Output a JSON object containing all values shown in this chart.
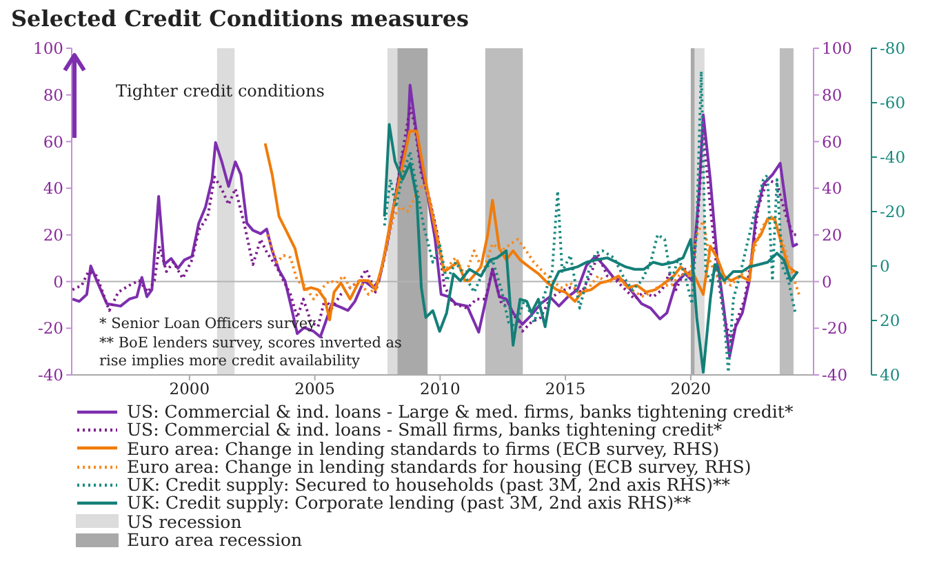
{
  "chart_data": {
    "type": "line",
    "title": "Selected Credit Conditions measures",
    "xlim": [
      1995.3,
      2024.9
    ],
    "xticks": [
      2000,
      2005,
      2010,
      2015,
      2020
    ],
    "ylim": [
      -40,
      100
    ],
    "yticks": [
      -40,
      -20,
      0,
      20,
      40,
      60,
      80,
      100
    ],
    "y2lim": [
      -40,
      100
    ],
    "y2ticks": [
      -40,
      -20,
      0,
      20,
      40,
      60,
      80,
      100
    ],
    "y3lim": [
      40,
      -80
    ],
    "y3ticks": [
      -80,
      -60,
      -40,
      -20,
      0,
      20,
      40
    ],
    "legend": "bottom",
    "annotations": [
      "Tighter credit conditions",
      "* Senior Loan Officers survey",
      "** BoE lenders survey, scores inverted as rise implies more credit availability"
    ],
    "ref_lines": [
      {
        "axis": "y",
        "value": 0,
        "color": "#b4b4b4"
      }
    ],
    "bands": [
      {
        "axis": "x",
        "from": 2001.1,
        "to": 2001.8,
        "label": "US recession",
        "color": "#dcdcdc"
      },
      {
        "axis": "x",
        "from": 2007.9,
        "to": 2009.5,
        "color": "#dcdcdc"
      },
      {
        "axis": "x",
        "from": 2020.05,
        "to": 2020.55,
        "color": "#dcdcdc"
      },
      {
        "axis": "x",
        "from": 2008.3,
        "to": 2009.5,
        "label": "Euro area recession",
        "color": "#a9a9a9"
      },
      {
        "axis": "x",
        "from": 2011.8,
        "to": 2013.3,
        "color": "#bdbdbd"
      },
      {
        "axis": "x",
        "from": 2020.0,
        "to": 2020.15,
        "color": "#a9a9a9"
      },
      {
        "axis": "x",
        "from": 2023.55,
        "to": 2024.1,
        "color": "#bdbdbd"
      }
    ],
    "series": [
      {
        "name": "US: Commercial & ind. loans - Large & med. firms, banks tightening credit*",
        "color": "#7d2fae",
        "line_style": "solid",
        "axis": "y",
        "x": [
          1995.33,
          1995.6,
          1995.9,
          1996.06,
          1996.3,
          1996.7,
          1997.25,
          1997.6,
          1997.9,
          1998.1,
          1998.3,
          1998.5,
          1998.77,
          1998.99,
          1999.27,
          1999.54,
          1999.8,
          2000.1,
          2000.37,
          2000.64,
          2000.9,
          2001.04,
          2001.28,
          2001.56,
          2001.83,
          2002.05,
          2002.29,
          2002.53,
          2002.84,
          2003.08,
          2003.3,
          2003.57,
          2003.81,
          2004.03,
          2004.3,
          2004.58,
          2004.95,
          2005.22,
          2005.4,
          2005.68,
          2006.04,
          2006.32,
          2006.6,
          2006.96,
          2007.33,
          2007.56,
          2007.88,
          2008.24,
          2008.5,
          2008.7,
          2008.8,
          2008.97,
          2009.25,
          2009.52,
          2009.8,
          2010.04,
          2010.35,
          2010.62,
          2011.08,
          2011.54,
          2011.81,
          2012.09,
          2012.36,
          2012.64,
          2012.91,
          2013.28,
          2013.64,
          2014.01,
          2014.38,
          2014.74,
          2015.1,
          2015.48,
          2015.84,
          2016.2,
          2016.58,
          2016.94,
          2017.3,
          2017.67,
          2018.04,
          2018.4,
          2018.77,
          2019.05,
          2019.41,
          2019.78,
          2020.05,
          2020.33,
          2020.5,
          2020.78,
          2021.05,
          2021.33,
          2021.55,
          2021.79,
          2022.06,
          2022.34,
          2022.6,
          2022.9,
          2023.26,
          2023.57,
          2023.81,
          2024.08,
          2024.27
        ],
        "values": [
          -7.5,
          -8.5,
          -5.5,
          6.7,
          0.4,
          -9.5,
          -10.5,
          -7.5,
          -6.5,
          1.8,
          -6.5,
          -3.5,
          36.5,
          7.3,
          9.9,
          5.7,
          9.3,
          10.8,
          25,
          32,
          43.8,
          59.6,
          51.7,
          40.8,
          51.3,
          45.8,
          25,
          22,
          20.5,
          22.5,
          13.2,
          4.9,
          0.4,
          -9.5,
          -22.3,
          -19.7,
          -21.3,
          -23.7,
          -18.3,
          -9.5,
          -11,
          -12.4,
          -8.5,
          0.4,
          -2.6,
          0.4,
          16.2,
          37.9,
          53.6,
          60.6,
          84.2,
          70.4,
          48.7,
          35.9,
          18.1,
          -5.5,
          -6.5,
          -9.5,
          -10.5,
          -21.7,
          -8.5,
          5.3,
          -6.5,
          -7.5,
          -13.4,
          -18.3,
          -14.4,
          -9.5,
          -6.5,
          -10.5,
          -6.5,
          -3.5,
          6.9,
          10.8,
          6.3,
          1.4,
          0.4,
          -4.5,
          -9.5,
          -11.4,
          -16,
          -13.4,
          -0.6,
          3.4,
          0.4,
          37.9,
          71.4,
          43.8,
          10.3,
          -12.4,
          -32.1,
          -19.3,
          -13.4,
          0.4,
          28,
          41.8,
          45.8,
          50.7,
          32,
          15.2,
          16.2
        ]
      },
      {
        "name": "US: Commercial & ind. loans - Small firms, banks tightening credit*",
        "color": "#7d1f8e",
        "line_style": "dotted",
        "axis": "y",
        "x": [
          1995.33,
          1995.7,
          1995.97,
          1996.3,
          1996.8,
          1997.16,
          1997.6,
          1997.99,
          1998.35,
          1998.6,
          1998.8,
          1999.08,
          1999.36,
          1999.73,
          2000.1,
          2000.37,
          2000.73,
          2001,
          2001.28,
          2001.56,
          2001.83,
          2002.2,
          2002.53,
          2002.84,
          2003.1,
          2003.48,
          2003.75,
          2004.03,
          2004.3,
          2004.54,
          2004.85,
          2005.13,
          2005.4,
          2005.68,
          2006.04,
          2006.41,
          2006.78,
          2007.05,
          2007.42,
          2007.7,
          2007.97,
          2008.24,
          2008.5,
          2008.8,
          2008.97,
          2009.25,
          2009.52,
          2009.9,
          2010.16,
          2010.53,
          2011.08,
          2011.45,
          2011.81,
          2012.09,
          2012.45,
          2012.82,
          2013.28,
          2013.64,
          2014.01,
          2014.38,
          2014.74,
          2015.2,
          2015.66,
          2016.02,
          2016.3,
          2016.67,
          2017.03,
          2017.4,
          2017.76,
          2018.13,
          2018.5,
          2018.86,
          2019.14,
          2019.41,
          2019.78,
          2020.05,
          2020.29,
          2020.5,
          2020.78,
          2021.05,
          2021.33,
          2021.6,
          2021.88,
          2022.15,
          2022.43,
          2022.7,
          2023.06,
          2023.44,
          2023.81,
          2024.08,
          2024.27
        ],
        "values": [
          -3.5,
          -1.6,
          4.3,
          2.4,
          -12.4,
          -4.5,
          -1.6,
          0.4,
          -4.5,
          0.4,
          15.2,
          4.3,
          8.3,
          1.4,
          9.3,
          22,
          28,
          44.8,
          39.8,
          33,
          39.8,
          24,
          7.3,
          18.1,
          12.2,
          6.3,
          0.4,
          -5.5,
          -15.4,
          -7.5,
          -17.4,
          -19.3,
          -7.5,
          -11.4,
          -5.5,
          -2.6,
          0.4,
          5.3,
          -4.5,
          6.3,
          20.1,
          37.9,
          55.6,
          74.4,
          68.4,
          45.8,
          37.9,
          20.1,
          -1.6,
          -9.5,
          -11.4,
          -7.5,
          -7.5,
          5.3,
          -9.5,
          -11.4,
          -21.3,
          -17.4,
          -15.4,
          -7.5,
          -4.5,
          -2.6,
          -4.5,
          3.4,
          11.6,
          2.4,
          0.4,
          -3.5,
          -7.5,
          -4.5,
          -6.5,
          -3.5,
          3.4,
          -3.5,
          5.3,
          3.4,
          28,
          63.5,
          32,
          4.3,
          -15.4,
          -25.2,
          -15.4,
          -7.5,
          10.3,
          32,
          43.8,
          41.8,
          28,
          20.1,
          20.1
        ]
      },
      {
        "name": "Euro area: Change in lending standards to firms (ECB survey, RHS)",
        "color": "#f07c0a",
        "line_style": "solid",
        "axis": "y2",
        "x": [
          2003.02,
          2003.3,
          2003.57,
          2003.85,
          2004.21,
          2004.4,
          2004.58,
          2004.85,
          2005.13,
          2005.4,
          2005.59,
          2005.77,
          2006.04,
          2006.41,
          2006.78,
          2007.14,
          2007.42,
          2007.7,
          2008.06,
          2008.42,
          2008.79,
          2009.07,
          2009.34,
          2009.62,
          2009.89,
          2010.16,
          2010.44,
          2010.71,
          2010.99,
          2011.17,
          2011.63,
          2011.9,
          2012.09,
          2012.36,
          2012.64,
          2012.91,
          2013.19,
          2013.55,
          2013.92,
          2014.29,
          2014.65,
          2014.99,
          2015.38,
          2015.66,
          2016.02,
          2016.39,
          2016.75,
          2017.12,
          2017.49,
          2017.85,
          2018.22,
          2018.59,
          2018.96,
          2019.32,
          2019.6,
          2019.87,
          2020.15,
          2020.5,
          2020.78,
          2021.05,
          2021.33,
          2021.6,
          2021.97,
          2022.34,
          2022.52,
          2022.8,
          2023.07,
          2023.35,
          2023.62,
          2023.9,
          2024.27
        ],
        "values": [
          59.2,
          45.8,
          28,
          22,
          14.2,
          5.3,
          -3.5,
          -2.6,
          -3.5,
          -7.5,
          -16.4,
          -4.5,
          -0.6,
          -7.5,
          0.4,
          0.4,
          -3.5,
          7.3,
          28,
          45.8,
          64.5,
          64.5,
          47.7,
          32,
          18.1,
          4.3,
          6.3,
          8.3,
          0.4,
          0.4,
          6.3,
          20.1,
          34.9,
          14.2,
          9.3,
          13.2,
          9.3,
          6.3,
          3.4,
          -0.6,
          -3.5,
          -4.5,
          -8.5,
          -4.5,
          -3.5,
          -0.6,
          0.4,
          2.4,
          -2.6,
          -1.6,
          -4.5,
          -3.5,
          -0.6,
          2.4,
          6.3,
          3.4,
          2.4,
          -5.5,
          15.2,
          10.3,
          2.4,
          0.4,
          2.4,
          0.4,
          16.2,
          20.1,
          27,
          27,
          16.2,
          6.3,
          3.4
        ]
      },
      {
        "name": "Euro area: Change in lending standards for housing (ECB survey, RHS)",
        "color": "#f58a1f",
        "line_style": "dotted",
        "axis": "y2",
        "x": [
          2003.11,
          2003.48,
          2003.75,
          2004.03,
          2004.3,
          2004.58,
          2004.95,
          2005.31,
          2005.59,
          2005.86,
          2006.14,
          2006.41,
          2006.78,
          2007.14,
          2007.5,
          2007.88,
          2008.15,
          2008.42,
          2008.7,
          2009.07,
          2009.34,
          2009.62,
          2009.89,
          2010.16,
          2010.62,
          2010.99,
          2011.36,
          2011.72,
          2012.09,
          2012.45,
          2012.82,
          2013.1,
          2013.37,
          2013.74,
          2014.1,
          2014.47,
          2014.84,
          2015.2,
          2015.57,
          2015.93,
          2016.3,
          2016.67,
          2017.03,
          2017.4,
          2017.76,
          2018.13,
          2018.5,
          2018.86,
          2019.23,
          2019.6,
          2019.96,
          2020.24,
          2020.5,
          2020.78,
          2021.14,
          2021.6,
          2021.97,
          2022.34,
          2022.6,
          2022.88,
          2023.26,
          2023.53,
          2023.9,
          2024.32
        ],
        "values": [
          20.1,
          8.3,
          11.2,
          10.3,
          0.4,
          -1.6,
          -7.5,
          -2.6,
          0.4,
          -0.6,
          2.4,
          -2.6,
          0.4,
          -5.5,
          -1.6,
          16.2,
          28,
          32,
          30,
          37.9,
          41.8,
          33.9,
          20.1,
          4.3,
          10.3,
          2.4,
          13.2,
          4.3,
          16.2,
          13.2,
          16.2,
          18.1,
          14.2,
          8.3,
          4.3,
          0.4,
          -2.6,
          -0.6,
          -5.5,
          -2.6,
          2.4,
          -0.6,
          1.4,
          -1.6,
          -4.5,
          -6.5,
          -3.5,
          -1.6,
          -1.6,
          3.4,
          2.4,
          20.1,
          26,
          8.3,
          0.4,
          -1.6,
          2.4,
          6.3,
          16.2,
          24,
          28,
          22,
          8.3,
          -5.5
        ]
      },
      {
        "name": "UK: Credit supply: Secured  to households  (past 3M, 2nd axis RHS)**",
        "color": "#1a8a80",
        "line_style": "dotted",
        "axis": "y3",
        "x": [
          2007.78,
          2008.02,
          2008.24,
          2008.5,
          2008.8,
          2009.07,
          2009.34,
          2009.71,
          2009.98,
          2010.26,
          2010.62,
          2010.99,
          2011.36,
          2011.72,
          2012.09,
          2012.45,
          2012.73,
          2013,
          2013.37,
          2013.74,
          2014.1,
          2014.47,
          2014.69,
          2014.87,
          2015.2,
          2015.57,
          2015.93,
          2016.2,
          2016.48,
          2016.94,
          2017.3,
          2017.67,
          2018.04,
          2018.4,
          2018.68,
          2018.96,
          2019.23,
          2019.51,
          2019.78,
          2020.05,
          2020.24,
          2020.42,
          2020.6,
          2020.78,
          2021.05,
          2021.33,
          2021.5,
          2021.7,
          2021.97,
          2022.34,
          2022.6,
          2022.9,
          2023.06,
          2023.26,
          2023.44,
          2023.66,
          2023.9,
          2024.17
        ],
        "values": [
          -14.9,
          -31.8,
          -21.6,
          -33.4,
          -41.9,
          -28.4,
          -14.9,
          -1.4,
          -8.1,
          5.4,
          -1.4,
          3.7,
          9.6,
          2,
          -2.2,
          8.8,
          20.6,
          22.3,
          12.2,
          20.6,
          12.2,
          2,
          -27.5,
          2,
          -3.9,
          15.5,
          2,
          -4.7,
          -5.6,
          -3,
          3.7,
          8.8,
          5.4,
          -1.4,
          -11.5,
          -9.8,
          5.4,
          -3,
          3.7,
          13.9,
          -14.9,
          -71.5,
          2,
          5.4,
          -1.4,
          18.9,
          39,
          12.2,
          2.9,
          -11.5,
          -21.6,
          -31.8,
          -33.4,
          5.4,
          -31.8,
          0.3,
          5.4,
          17.2
        ]
      },
      {
        "name": "UK: Credit supply: Corporate lending (past 3M, 2nd axis RHS)**",
        "color": "#147f78",
        "line_style": "solid",
        "axis": "y3",
        "x": [
          2007.78,
          2007.97,
          2008.2,
          2008.5,
          2008.8,
          2009.07,
          2009.25,
          2009.43,
          2009.71,
          2009.98,
          2010.26,
          2010.53,
          2010.81,
          2011.17,
          2011.63,
          2011.99,
          2012.27,
          2012.64,
          2012.91,
          2013.19,
          2013.46,
          2013.64,
          2013.92,
          2014.19,
          2014.47,
          2014.74,
          2015.1,
          2015.48,
          2015.84,
          2016.2,
          2016.67,
          2017.03,
          2017.4,
          2017.76,
          2018.13,
          2018.5,
          2018.86,
          2019.32,
          2019.69,
          2020,
          2020.24,
          2020.5,
          2020.78,
          2020.96,
          2021.33,
          2021.7,
          2022.06,
          2022.34,
          2022.7,
          2023.07,
          2023.44,
          2023.72,
          2023.99,
          2024.27
        ],
        "values": [
          -18.2,
          -52,
          -38.5,
          -31.8,
          -37.7,
          -25,
          7.9,
          18.9,
          16.4,
          24,
          17.2,
          2.9,
          5.4,
          1.2,
          3.7,
          -2.2,
          -3,
          -5.6,
          29.1,
          12.2,
          13,
          17.2,
          12.2,
          22.3,
          7.1,
          2,
          1.2,
          0.3,
          -1.4,
          -2.2,
          -3,
          -1.4,
          0.3,
          1.2,
          1.2,
          -1.4,
          -0.5,
          -1.4,
          -3,
          -9.8,
          18.9,
          39,
          12.2,
          -0.5,
          5.4,
          2,
          2,
          0.3,
          -0.5,
          -1.4,
          -4.7,
          -2.2,
          5.4,
          2
        ]
      }
    ]
  }
}
